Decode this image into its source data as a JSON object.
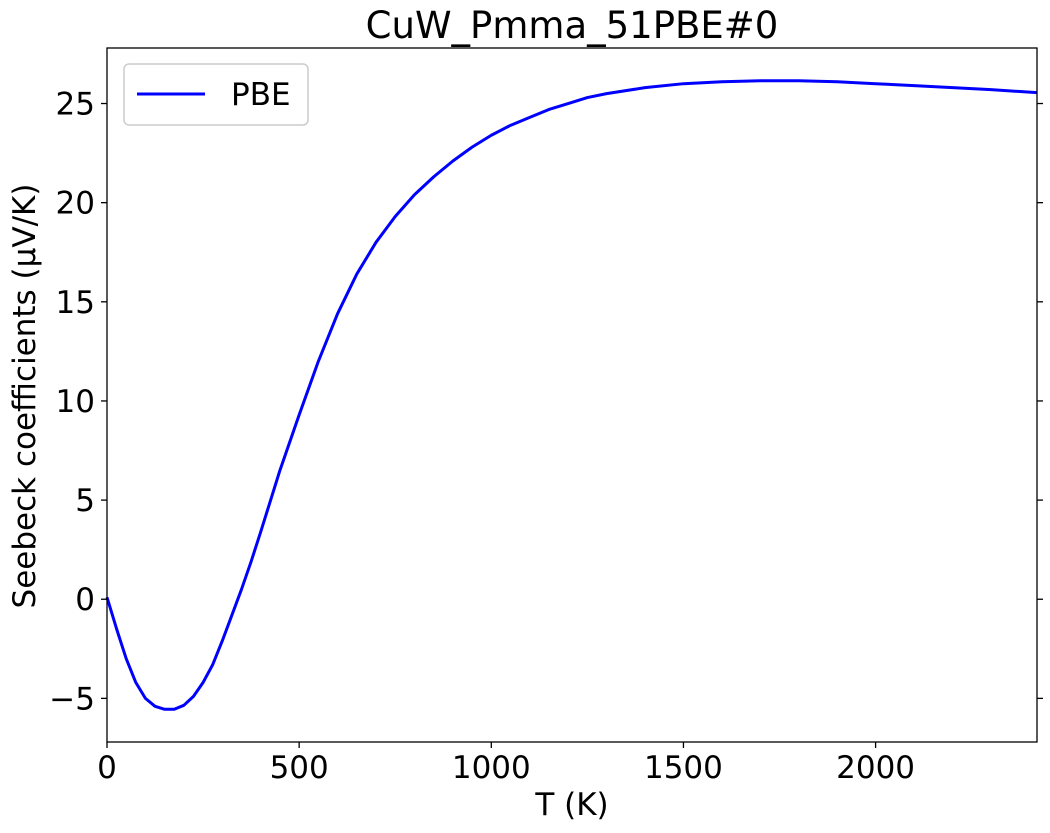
{
  "chart_data": {
    "type": "line",
    "title": "CuW_Pmma_51PBE#0",
    "xlabel": "T (K)",
    "ylabel": "Seebeck coefficients (μV/K)",
    "xlim": [
      0,
      2420
    ],
    "ylim": [
      -7.2,
      27.8
    ],
    "xticks": [
      0,
      500,
      1000,
      1500,
      2000
    ],
    "xtick_labels": [
      "0",
      "500",
      "1000",
      "1500",
      "2000"
    ],
    "yticks": [
      -5,
      0,
      5,
      10,
      15,
      20,
      25
    ],
    "ytick_labels": [
      "−5",
      "0",
      "5",
      "10",
      "15",
      "20",
      "25"
    ],
    "grid": false,
    "legend_position": "top-left",
    "series": [
      {
        "name": "PBE",
        "color": "#0000ff",
        "x": [
          0,
          25,
          50,
          75,
          100,
          125,
          150,
          175,
          200,
          225,
          250,
          275,
          300,
          325,
          350,
          375,
          400,
          450,
          500,
          550,
          600,
          650,
          700,
          750,
          800,
          850,
          900,
          950,
          1000,
          1050,
          1100,
          1150,
          1200,
          1250,
          1300,
          1400,
          1500,
          1600,
          1700,
          1760,
          1800,
          1900,
          2000,
          2100,
          2200,
          2300,
          2420
        ],
        "y": [
          0.1,
          -1.5,
          -3.0,
          -4.2,
          -5.0,
          -5.4,
          -5.55,
          -5.55,
          -5.35,
          -4.9,
          -4.2,
          -3.3,
          -2.1,
          -0.8,
          0.5,
          1.9,
          3.4,
          6.5,
          9.3,
          12.0,
          14.4,
          16.4,
          18.0,
          19.3,
          20.4,
          21.3,
          22.1,
          22.8,
          23.4,
          23.9,
          24.3,
          24.7,
          25.0,
          25.3,
          25.5,
          25.8,
          26.0,
          26.1,
          26.15,
          26.15,
          26.15,
          26.1,
          26.0,
          25.9,
          25.8,
          25.7,
          25.55
        ]
      }
    ]
  }
}
